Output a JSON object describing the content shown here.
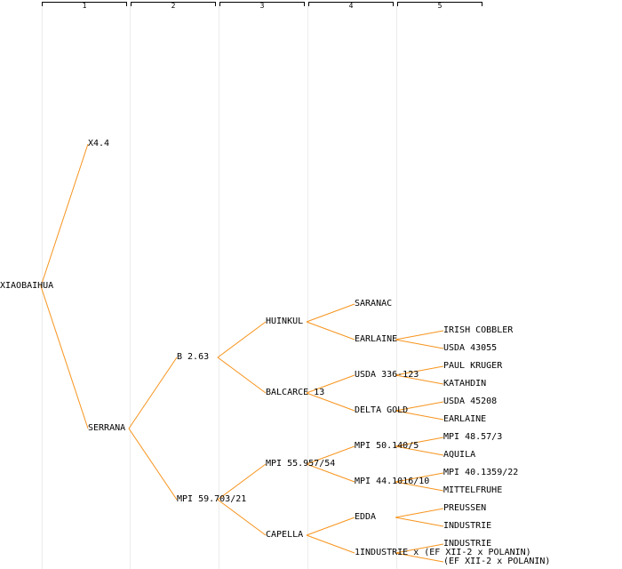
{
  "columns": [
    "1",
    "2",
    "3",
    "4",
    "5"
  ],
  "edge_color": "#f7941d",
  "nodes": {
    "n0": "XIAOBAIHUA",
    "n1": "X4.4",
    "n2": "SERRANA",
    "n3": "B 2.63",
    "n4": "MPI 59.703/21",
    "n5": "HUINKUL",
    "n6": "BALCARCE 13",
    "n7": "MPI 55.957/54",
    "n8": "CAPELLA",
    "n9": "SARANAC",
    "n10": "EARLAINE",
    "n11": "USDA 336-123",
    "n12": "DELTA GOLD",
    "n13": "MPI 50.140/5",
    "n14": "MPI 44.1016/10",
    "n15": "EDDA",
    "n16": "1INDUSTRIE x (EF XII-2 x POLANIN)",
    "n17": "IRISH COBBLER",
    "n18": "USDA 43055",
    "n19": "PAUL KRUGER",
    "n20": "KATAHDIN",
    "n21": "USDA 45208",
    "n22": "EARLAINE",
    "n23": "MPI 48.57/3",
    "n24": "AQUILA",
    "n25": "MPI 40.1359/22",
    "n26": "MITTELFRUHE",
    "n27": "PREUSSEN",
    "n28": "INDUSTRIE",
    "n29": "INDUSTRIE",
    "n30": "(EF XII-2 x POLANIN)"
  },
  "edges": [
    [
      "n0",
      "n1"
    ],
    [
      "n0",
      "n2"
    ],
    [
      "n2",
      "n3"
    ],
    [
      "n2",
      "n4"
    ],
    [
      "n3",
      "n5"
    ],
    [
      "n3",
      "n6"
    ],
    [
      "n4",
      "n7"
    ],
    [
      "n4",
      "n8"
    ],
    [
      "n5",
      "n9"
    ],
    [
      "n5",
      "n10"
    ],
    [
      "n6",
      "n11"
    ],
    [
      "n6",
      "n12"
    ],
    [
      "n7",
      "n13"
    ],
    [
      "n7",
      "n14"
    ],
    [
      "n8",
      "n15"
    ],
    [
      "n8",
      "n16"
    ],
    [
      "n10",
      "n17"
    ],
    [
      "n10",
      "n18"
    ],
    [
      "n11",
      "n19"
    ],
    [
      "n11",
      "n20"
    ],
    [
      "n12",
      "n21"
    ],
    [
      "n12",
      "n22"
    ],
    [
      "n13",
      "n23"
    ],
    [
      "n13",
      "n24"
    ],
    [
      "n14",
      "n25"
    ],
    [
      "n14",
      "n26"
    ],
    [
      "n15",
      "n27"
    ],
    [
      "n15",
      "n28"
    ],
    [
      "n16",
      "n29"
    ],
    [
      "n16",
      "n30"
    ]
  ]
}
